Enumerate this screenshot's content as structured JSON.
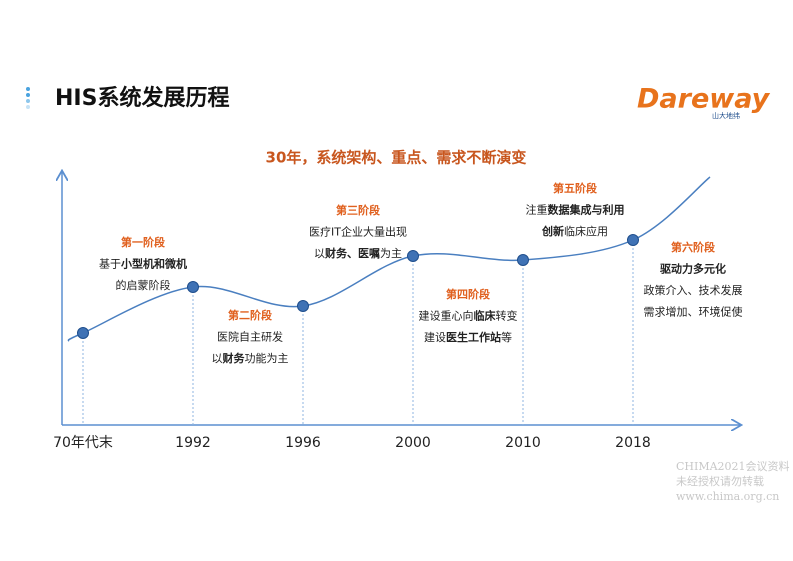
{
  "header": {
    "title": "HIS系统发展历程",
    "logo": "Dareway",
    "logo_caption": "山大地纬"
  },
  "subtitle": "30年，系统架构、重点、需求不断演变",
  "axis_labels": [
    "70年代末",
    "1992",
    "1996",
    "2000",
    "2010",
    "2018"
  ],
  "stages": [
    {
      "title": "第一阶段",
      "lines": [
        [
          {
            "text": "基于"
          },
          {
            "text": "小型机和微机",
            "bold": true
          }
        ],
        [
          {
            "text": "的启蒙阶段"
          }
        ]
      ]
    },
    {
      "title": "第二阶段",
      "lines": [
        [
          {
            "text": "医院自主研发"
          }
        ],
        [
          {
            "text": "以"
          },
          {
            "text": "财务",
            "bold": true
          },
          {
            "text": "功能为主"
          }
        ]
      ]
    },
    {
      "title": "第三阶段",
      "lines": [
        [
          {
            "text": "医疗IT企业大量出现"
          }
        ],
        [
          {
            "text": "以"
          },
          {
            "text": "财务、医嘱",
            "bold": true
          },
          {
            "text": "为主"
          }
        ]
      ]
    },
    {
      "title": "第四阶段",
      "lines": [
        [
          {
            "text": "建设重心向"
          },
          {
            "text": "临床",
            "bold": true
          },
          {
            "text": "转变"
          }
        ],
        [
          {
            "text": "建设"
          },
          {
            "text": "医生工作站",
            "bold": true
          },
          {
            "text": "等"
          }
        ]
      ]
    },
    {
      "title": "第五阶段",
      "lines": [
        [
          {
            "text": "注重"
          },
          {
            "text": "数据集成与利用",
            "bold": true
          }
        ],
        [
          {
            "text": "创新",
            "bold": true
          },
          {
            "text": "临床应用"
          }
        ]
      ]
    },
    {
      "title": "第六阶段",
      "lines": [
        [
          {
            "text": "驱动力多元化",
            "bold": true
          }
        ],
        [
          {
            "text": "政策介入、技术发展"
          }
        ],
        [
          {
            "text": "需求增加、环境促使"
          }
        ]
      ]
    }
  ],
  "watermark": [
    "CHIMA2021会议资料",
    "未经授权请勿转载",
    "www.chima.org.cn"
  ]
}
